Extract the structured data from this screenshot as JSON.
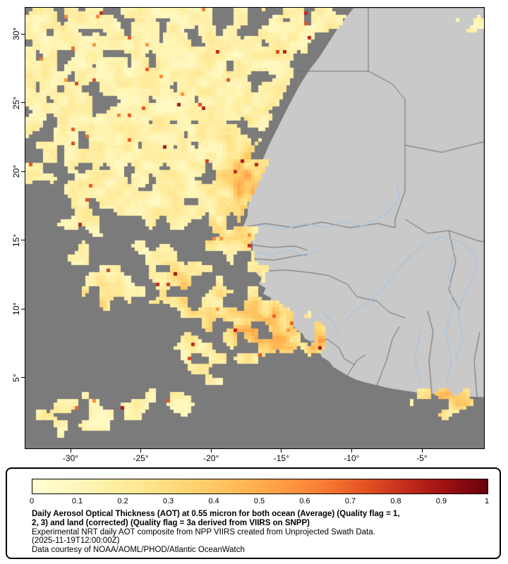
{
  "map": {
    "lat_labels": [
      "30°",
      "25°",
      "20°",
      "15°",
      "10°",
      "5°"
    ],
    "lon_labels": [
      "-30°",
      "-25°",
      "-20°",
      "-15°",
      "-10°",
      "-5°"
    ],
    "colors": {
      "ocean_nodata": "#7b7b7b",
      "land": "#c9c9c9",
      "country_border": "#6e6e6e",
      "river": "#a5c4e2",
      "frame": "#000000"
    },
    "aot_palette": [
      "#ffffd4",
      "#fff7bc",
      "#ffeea2",
      "#ffe187",
      "#ffd06d",
      "#ffb957",
      "#ff9c44",
      "#f87d33",
      "#e55322",
      "#c22d1d",
      "#9c1013",
      "#67000d"
    ]
  },
  "legend": {
    "range_min": 0,
    "range_max": 1,
    "ticks": [
      "0",
      "0.1",
      "0.2",
      "0.3",
      "0.4",
      "0.5",
      "0.6",
      "0.7",
      "0.8",
      "0.9",
      "1"
    ],
    "caption_bold": [
      "Daily Aerosol Optical Thickness (AOT) at 0.55 micron for both ocean (Average) (Quality flag = 1,",
      "2, 3) and land (corrected) (Quality flag = 3a derived from VIIRS on SNPP)"
    ],
    "caption_lines": [
      "Experimental NRT daily AOT composite from NPP VIIRS created from Unprojected Swath Data.",
      "(2025-11-19T12:00:00Z)",
      "Data courtesy of NOAA/AOML/PHOD/Atlantic OceanWatch"
    ]
  }
}
